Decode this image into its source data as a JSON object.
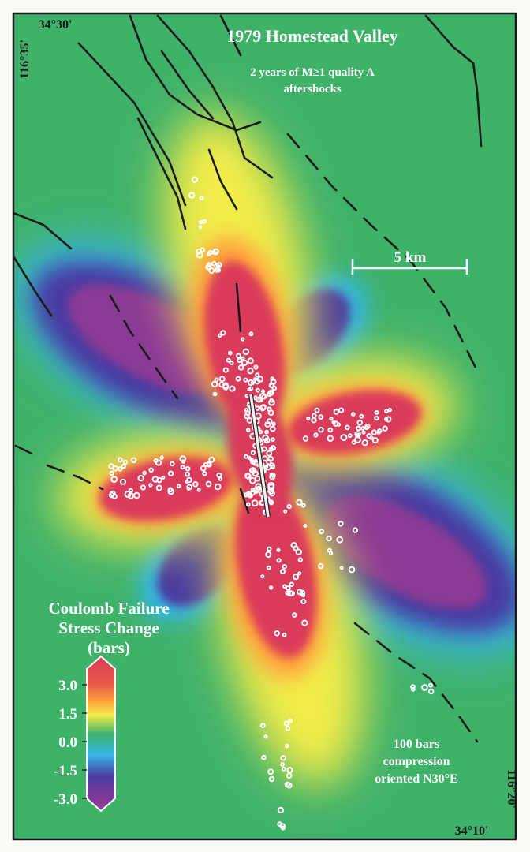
{
  "title": "1979 Homestead Valley",
  "subtitle_line1": "2 years of M≥1 quality A",
  "subtitle_line2": "aftershocks",
  "coords": {
    "top_left_lat": "34°30'",
    "top_left_lon": "116°35'",
    "bottom_right_lat": "34°10'",
    "bottom_right_lon": "116°20'"
  },
  "scale_bar_label": "5 km",
  "legend": {
    "title_line1": "Coulomb Failure",
    "title_line2": "Stress Change",
    "title_line3": "(bars)",
    "ticks": [
      "3.0",
      "1.5",
      "0.0",
      "-1.5",
      "-3.0"
    ],
    "colors": [
      "#d93a5a",
      "#ff9a3c",
      "#f2ec4a",
      "#3fb26a",
      "#35b5e8",
      "#4a3aa0",
      "#8a3a95"
    ]
  },
  "note_line1": "100 bars",
  "note_line2": "compression",
  "note_line3": "oriented N30°E",
  "colors": {
    "background": "#3fb26a",
    "positive": "#d93a5a",
    "negative": "#6b3590",
    "fault": "#1a1a1a",
    "aftershock": "#ffffff"
  }
}
